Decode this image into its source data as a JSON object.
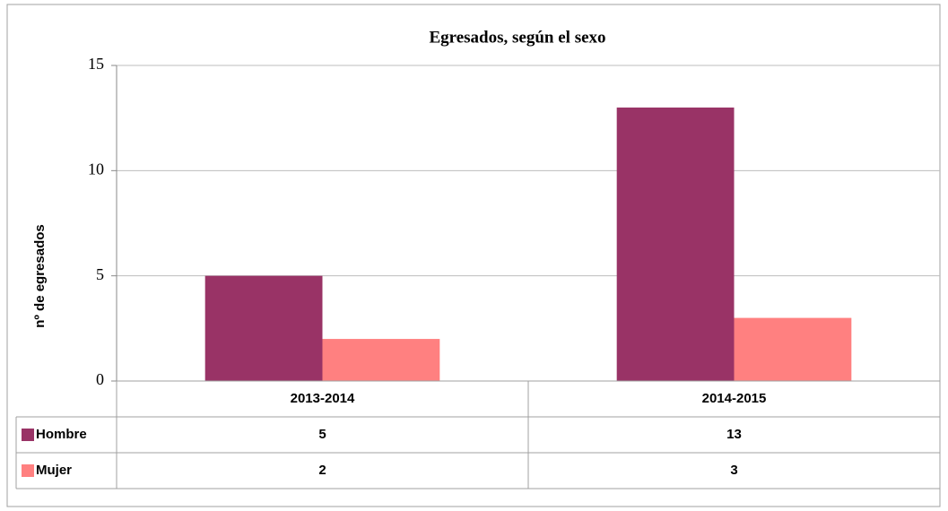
{
  "chart_data": {
    "type": "bar",
    "title": "Egresados, según el sexo",
    "y_label": "nº de egresados",
    "categories": [
      "2013-2014",
      "2014-2015"
    ],
    "series": [
      {
        "name": "Hombre",
        "color": "#993366",
        "values": [
          5,
          13
        ]
      },
      {
        "name": "Mujer",
        "color": "#ff8080",
        "values": [
          2,
          3
        ]
      }
    ],
    "ylim": [
      0,
      15
    ],
    "yticks": [
      0,
      5,
      10,
      15
    ],
    "grid": true,
    "data_table": true
  }
}
